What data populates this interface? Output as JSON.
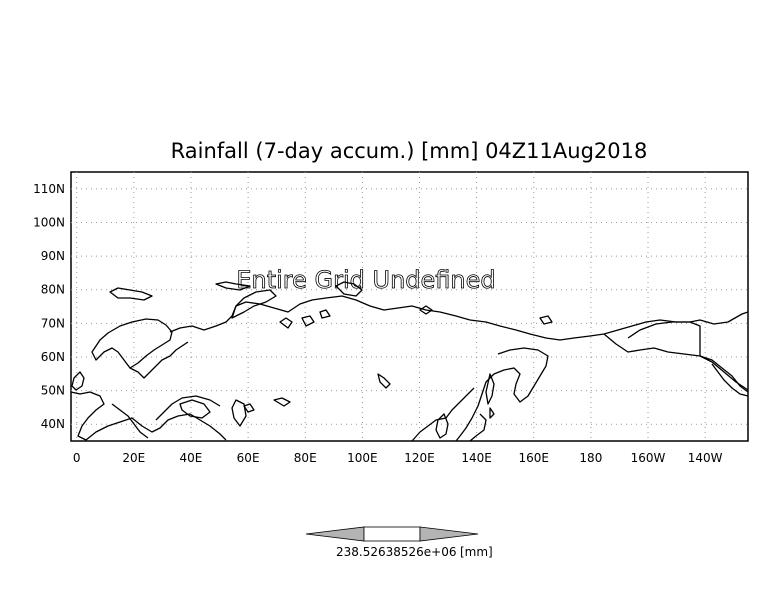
{
  "title": "Rainfall (7-day accum.) [mm] 04Z11Aug2018",
  "undefined_notice": "Entire Grid Undefined",
  "map": {
    "lon_range": [
      -2,
      235
    ],
    "lat_range": [
      35,
      115
    ],
    "lon_ticks": [
      "0",
      "20E",
      "40E",
      "60E",
      "80E",
      "100E",
      "120E",
      "140E",
      "160E",
      "180",
      "160W",
      "140W"
    ],
    "lat_ticks": [
      "110N",
      "100N",
      "90N",
      "80N",
      "70N",
      "60N",
      "50N",
      "40N"
    ],
    "gridlines": true
  },
  "colorbar": {
    "label": "238.52638526e+06",
    "unit": "[mm]"
  }
}
